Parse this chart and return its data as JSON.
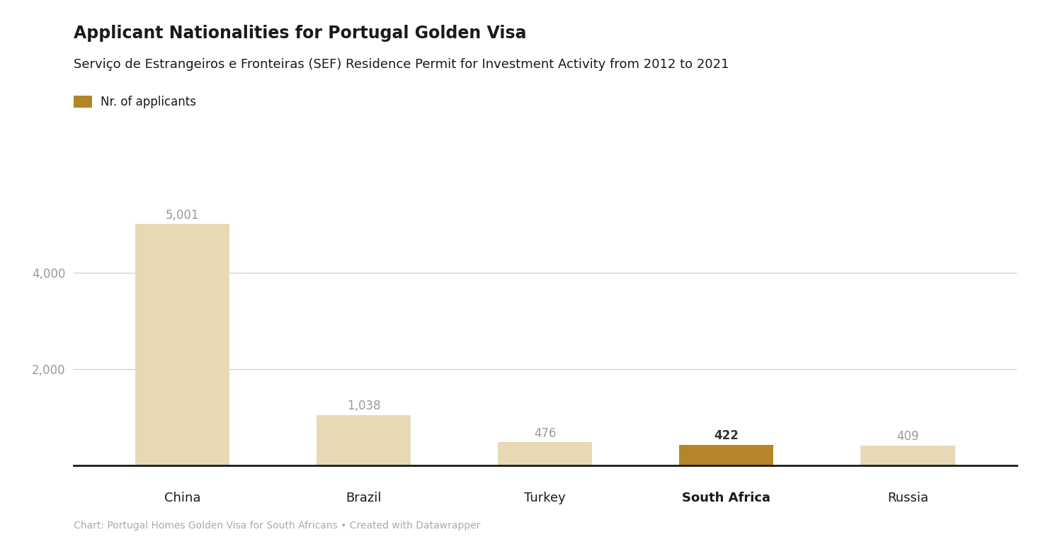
{
  "title": "Applicant Nationalities for Portugal Golden Visa",
  "subtitle": "Serviço de Estrangeiros e Fronteiras (SEF) Residence Permit for Investment Activity from 2012 to 2021",
  "legend_label": "Nr. of applicants",
  "categories": [
    "China",
    "Brazil",
    "Turkey",
    "South Africa",
    "Russia"
  ],
  "values": [
    5001,
    1038,
    476,
    422,
    409
  ],
  "bar_colors": [
    "#e8d9b5",
    "#e8d9b5",
    "#e8d9b5",
    "#b5852a",
    "#e8d9b5"
  ],
  "xlabel_bold": [
    false,
    false,
    false,
    true,
    false
  ],
  "yticks": [
    2000,
    4000
  ],
  "ylim": [
    0,
    5400
  ],
  "value_labels": [
    "5,001",
    "1,038",
    "476",
    "422",
    "409"
  ],
  "value_label_colors": [
    "#999999",
    "#999999",
    "#999999",
    "#333333",
    "#999999"
  ],
  "value_label_bold": [
    false,
    false,
    false,
    true,
    false
  ],
  "legend_color": "#b5852a",
  "background_color": "#ffffff",
  "footer": "Chart: Portugal Homes Golden Visa for South Africans • Created with Datawrapper",
  "title_fontsize": 17,
  "subtitle_fontsize": 13,
  "legend_fontsize": 12,
  "tick_fontsize": 12,
  "xlabel_fontsize": 13,
  "value_label_fontsize": 12,
  "footer_fontsize": 10,
  "bar_width": 0.52
}
